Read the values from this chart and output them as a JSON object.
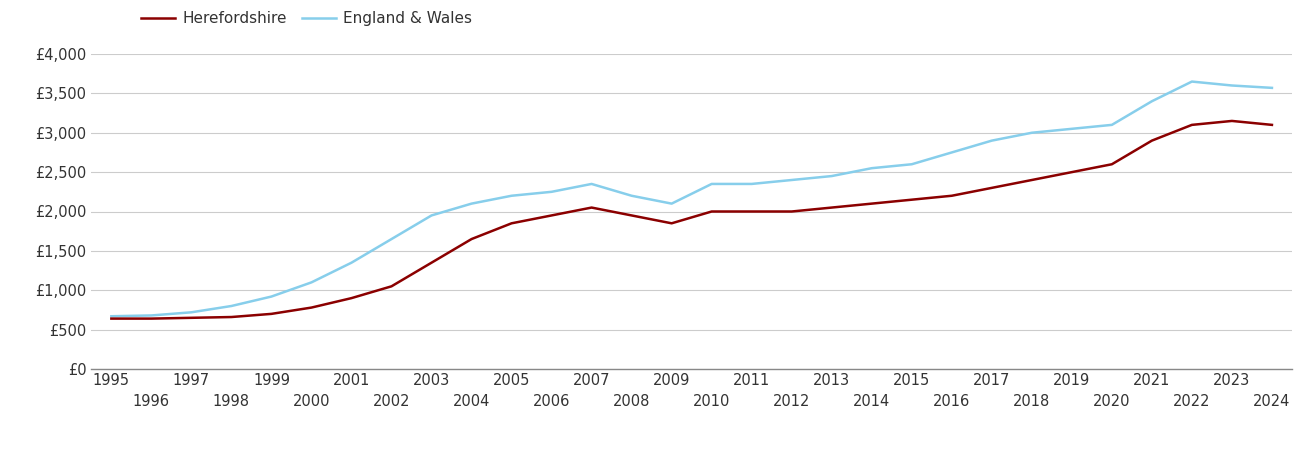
{
  "years": [
    1995,
    1996,
    1997,
    1998,
    1999,
    2000,
    2001,
    2002,
    2003,
    2004,
    2005,
    2006,
    2007,
    2008,
    2009,
    2010,
    2011,
    2012,
    2013,
    2014,
    2015,
    2016,
    2017,
    2018,
    2019,
    2020,
    2021,
    2022,
    2023,
    2024
  ],
  "herefordshire": [
    640,
    640,
    650,
    660,
    700,
    780,
    900,
    1050,
    1350,
    1650,
    1850,
    1950,
    2050,
    1950,
    1850,
    2000,
    2000,
    2000,
    2050,
    2100,
    2150,
    2200,
    2300,
    2400,
    2500,
    2600,
    2900,
    3100,
    3150,
    3100
  ],
  "england_wales": [
    670,
    680,
    720,
    800,
    920,
    1100,
    1350,
    1650,
    1950,
    2100,
    2200,
    2250,
    2350,
    2200,
    2100,
    2350,
    2350,
    2400,
    2450,
    2550,
    2600,
    2750,
    2900,
    3000,
    3050,
    3100,
    3400,
    3650,
    3600,
    3570
  ],
  "herefordshire_color": "#8B0000",
  "england_wales_color": "#87CEEB",
  "herefordshire_label": "Herefordshire",
  "england_wales_label": "England & Wales",
  "ylim": [
    0,
    4000
  ],
  "yticks": [
    0,
    500,
    1000,
    1500,
    2000,
    2500,
    3000,
    3500,
    4000
  ],
  "ytick_labels": [
    "£0",
    "£500",
    "£1,000",
    "£1,500",
    "£2,000",
    "£2,500",
    "£3,000",
    "£3,500",
    "£4,000"
  ],
  "xlim_min": 1994.5,
  "xlim_max": 2024.5,
  "background_color": "#ffffff",
  "grid_color": "#cccccc",
  "line_width": 1.8,
  "legend_fontsize": 11,
  "tick_fontsize": 10.5
}
